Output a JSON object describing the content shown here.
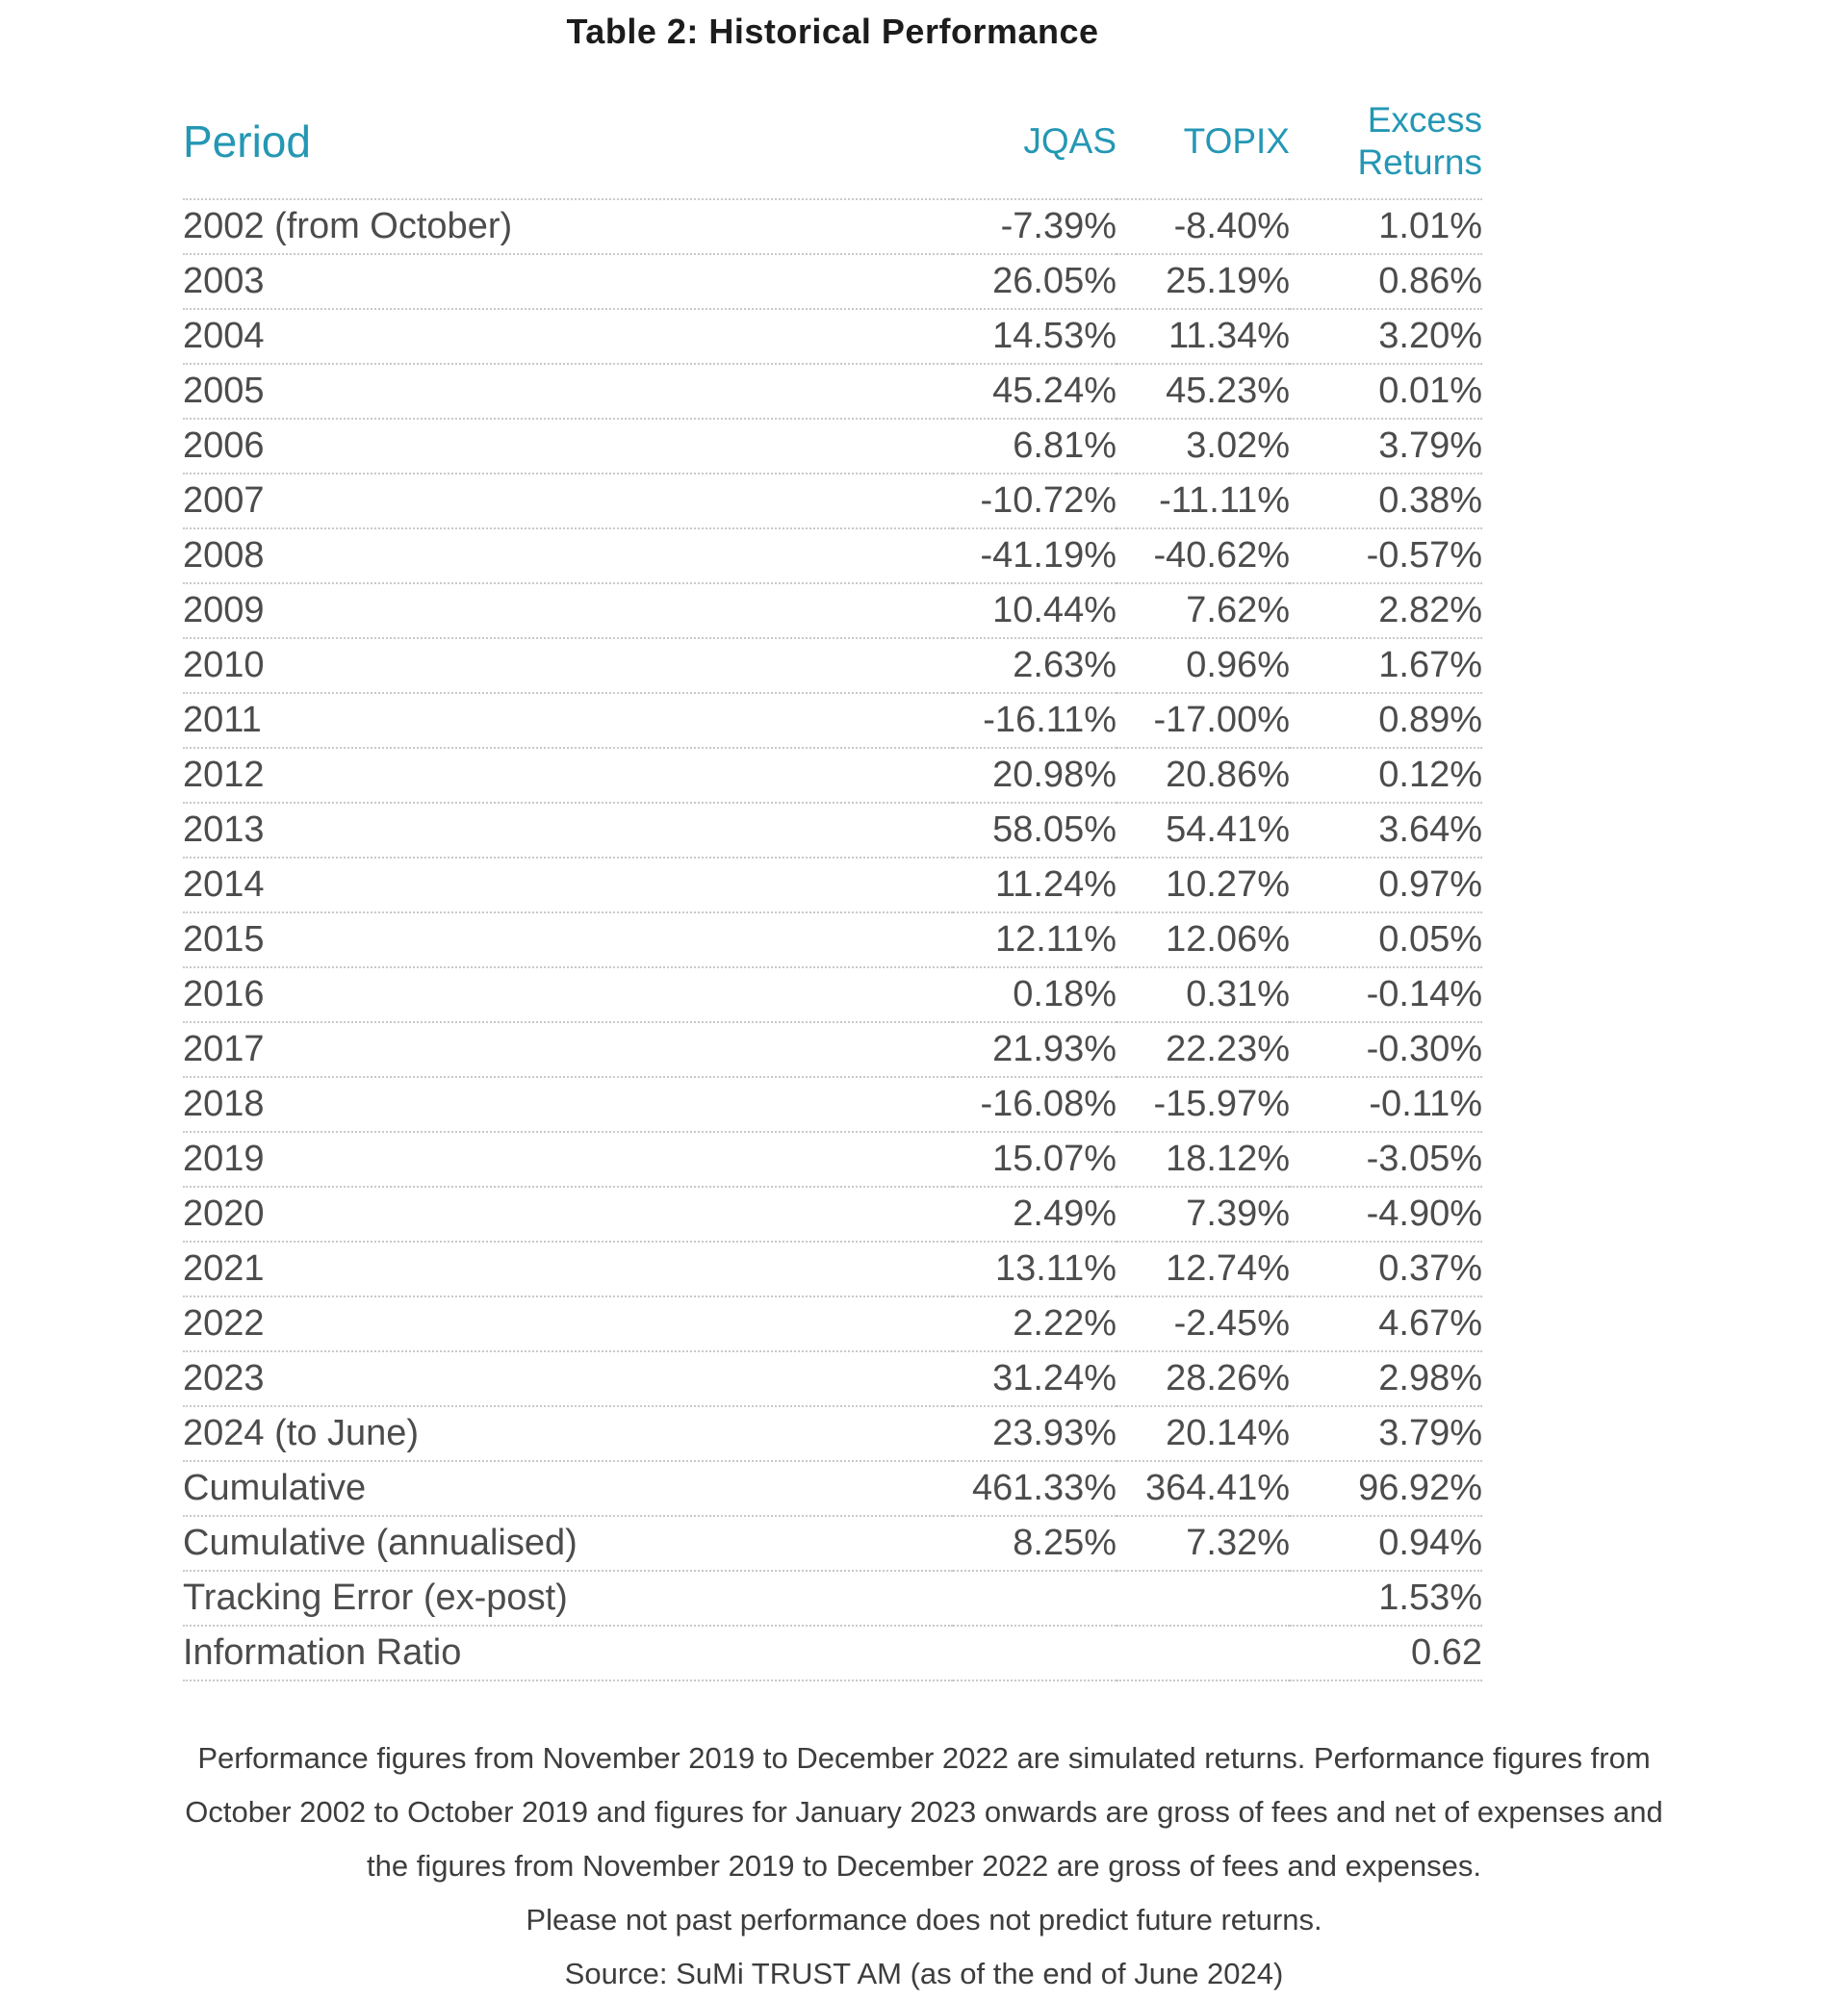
{
  "title": "Table 2: Historical Performance",
  "colors": {
    "accent_teal": "#2497B4",
    "body_text": "#4C4C4C",
    "title_text": "#1C1C1C",
    "row_divider": "#C9C9C9"
  },
  "table": {
    "columns": {
      "period": "Period",
      "jqas": "JQAS",
      "topix": "TOPIX",
      "excess": "Excess Returns"
    },
    "rows": [
      {
        "period": "2002 (from October)",
        "jqas": "-7.39%",
        "topix": "-8.40%",
        "excess": "1.01%"
      },
      {
        "period": "2003",
        "jqas": "26.05%",
        "topix": "25.19%",
        "excess": "0.86%"
      },
      {
        "period": "2004",
        "jqas": "14.53%",
        "topix": "11.34%",
        "excess": "3.20%"
      },
      {
        "period": "2005",
        "jqas": "45.24%",
        "topix": "45.23%",
        "excess": "0.01%"
      },
      {
        "period": "2006",
        "jqas": "6.81%",
        "topix": "3.02%",
        "excess": "3.79%"
      },
      {
        "period": "2007",
        "jqas": "-10.72%",
        "topix": "-11.11%",
        "excess": "0.38%"
      },
      {
        "period": "2008",
        "jqas": "-41.19%",
        "topix": "-40.62%",
        "excess": "-0.57%"
      },
      {
        "period": "2009",
        "jqas": "10.44%",
        "topix": "7.62%",
        "excess": "2.82%"
      },
      {
        "period": "2010",
        "jqas": "2.63%",
        "topix": "0.96%",
        "excess": "1.67%"
      },
      {
        "period": "2011",
        "jqas": "-16.11%",
        "topix": "-17.00%",
        "excess": "0.89%"
      },
      {
        "period": "2012",
        "jqas": "20.98%",
        "topix": "20.86%",
        "excess": "0.12%"
      },
      {
        "period": "2013",
        "jqas": "58.05%",
        "topix": "54.41%",
        "excess": "3.64%"
      },
      {
        "period": "2014",
        "jqas": "11.24%",
        "topix": "10.27%",
        "excess": "0.97%"
      },
      {
        "period": "2015",
        "jqas": "12.11%",
        "topix": "12.06%",
        "excess": "0.05%"
      },
      {
        "period": "2016",
        "jqas": "0.18%",
        "topix": "0.31%",
        "excess": "-0.14%"
      },
      {
        "period": "2017",
        "jqas": "21.93%",
        "topix": "22.23%",
        "excess": "-0.30%"
      },
      {
        "period": "2018",
        "jqas": "-16.08%",
        "topix": "-15.97%",
        "excess": "-0.11%"
      },
      {
        "period": "2019",
        "jqas": "15.07%",
        "topix": "18.12%",
        "excess": "-3.05%"
      },
      {
        "period": "2020",
        "jqas": "2.49%",
        "topix": "7.39%",
        "excess": "-4.90%"
      },
      {
        "period": "2021",
        "jqas": "13.11%",
        "topix": "12.74%",
        "excess": "0.37%"
      },
      {
        "period": "2022",
        "jqas": "2.22%",
        "topix": "-2.45%",
        "excess": "4.67%"
      },
      {
        "period": "2023",
        "jqas": "31.24%",
        "topix": "28.26%",
        "excess": "2.98%"
      },
      {
        "period": "2024 (to June)",
        "jqas": "23.93%",
        "topix": "20.14%",
        "excess": "3.79%"
      },
      {
        "period": "Cumulative",
        "jqas": "461.33%",
        "topix": "364.41%",
        "excess": "96.92%"
      },
      {
        "period": "Cumulative (annualised)",
        "jqas": "8.25%",
        "topix": "7.32%",
        "excess": "0.94%"
      },
      {
        "period": "Tracking Error (ex-post)",
        "jqas": "",
        "topix": "",
        "excess": "1.53%"
      },
      {
        "period": "Information Ratio",
        "jqas": "",
        "topix": "",
        "excess": "0.62"
      }
    ]
  },
  "footnotes": {
    "lines": [
      "Performance figures from November 2019 to December 2022 are simulated returns. Performance figures from",
      "October 2002 to October 2019 and figures for January 2023 onwards are gross of fees and net of expenses and",
      "the figures from November 2019 to December 2022 are gross of fees and expenses.",
      "Please not past performance does not predict future returns.",
      "Source: SuMi TRUST AM (as of the end of June 2024)"
    ]
  }
}
